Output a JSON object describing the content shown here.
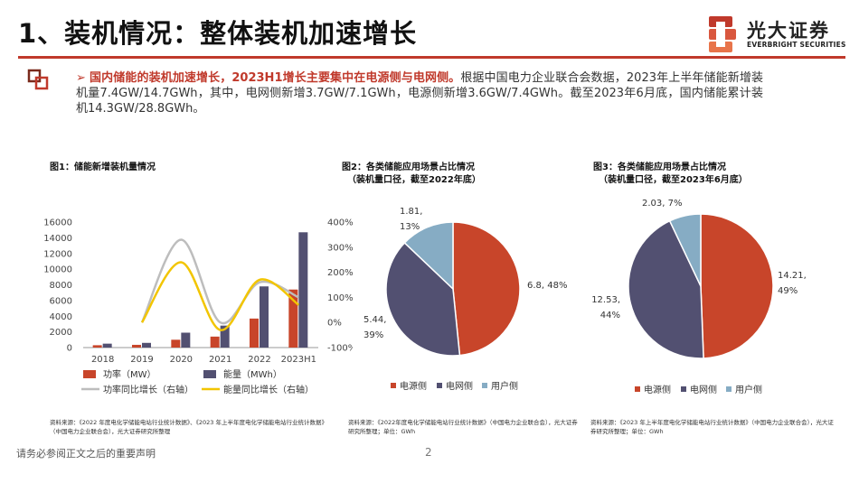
{
  "header": {
    "title": "1、装机情况：整体装机加速增长",
    "logo_cn": "光大证券",
    "logo_en": "EVERBRIGHT SECURITIES"
  },
  "summary": {
    "arrow": "➢",
    "highlight": "国内储能的装机加速增长，2023H1增长主要集中在电源侧与电网侧。",
    "body": "根据中国电力企业联合会数据，2023年上半年储能新增装机量7.4GW/14.7GWh，其中，电网侧新增3.7GW/7.1GWh，电源侧新增3.6GW/7.4GWh。截至2023年6月底，国内储能累计装机14.3GW/28.8GWh。"
  },
  "figures": {
    "fig1_title": "图1：储能新增装机量情况",
    "fig2_title_line1": "图2：各类储能应用场景占比情况",
    "fig2_title_line2": "（装机量口径，截至2022年底）",
    "fig3_title_line1": "图3：各类储能应用场景占比情况",
    "fig3_title_line2": "（装机量口径，截至2023年6月底）"
  },
  "sources": {
    "src1": "资料来源：《2022 年度电化学储能电站行业统计数据》、《2023 年上半年度电化学储能电站行业统计数据》（中国电力企业联合会），光大证券研究所整理",
    "src2": "资料来源：《2022年度电化学储能电站行业统计数据》（中国电力企业联合会），光大证券研究所整理；单位：GWh",
    "src3": "资料来源：《2023 年上半年度电化学储能电站行业统计数据》（中国电力企业联合会），光大证券研究所整理；单位：GWh"
  },
  "footer": {
    "disclaimer": "请务必参阅正文之后的重要声明",
    "page": "2"
  },
  "colors": {
    "accent": "#c0392b",
    "power": "#c8452a",
    "energy": "#525071",
    "power_growth": "#bdbdbd",
    "energy_growth": "#f2c500",
    "user": "#86acc4"
  },
  "chart_data": [
    {
      "type": "bar",
      "categories": [
        "2018",
        "2019",
        "2020",
        "2021",
        "2022",
        "2023H1"
      ],
      "series": [
        {
          "name": "功率（MW）",
          "type": "bar",
          "axis": "left",
          "values": [
            300,
            350,
            1000,
            1400,
            3700,
            7400
          ]
        },
        {
          "name": "能量（MWh）",
          "type": "bar",
          "axis": "left",
          "values": [
            500,
            600,
            1900,
            2800,
            7800,
            14700
          ]
        },
        {
          "name": "功率同比增长（右轴）",
          "type": "line",
          "axis": "right",
          "values": [
            null,
            0,
            330,
            0,
            160,
            100
          ]
        },
        {
          "name": "能量同比增长（右轴）",
          "type": "line",
          "axis": "right",
          "values": [
            null,
            0,
            240,
            -30,
            170,
            70
          ]
        }
      ],
      "y_left": {
        "min": 0,
        "max": 16000,
        "ticks": [
          "0",
          "2000",
          "4000",
          "6000",
          "8000",
          "10000",
          "12000",
          "14000",
          "16000"
        ]
      },
      "y_right": {
        "min": -100,
        "max": 400,
        "ticks": [
          "-100%",
          "0%",
          "100%",
          "200%",
          "300%",
          "400%"
        ]
      },
      "legend_position": "bottom",
      "grid": false
    },
    {
      "type": "pie",
      "slices": [
        {
          "name": "电源侧",
          "value": 6.8,
          "label_line1": "6.8, 48%",
          "label_line2": ""
        },
        {
          "name": "电网侧",
          "value": 5.44,
          "label_line1": "5.44,",
          "label_line2": "39%"
        },
        {
          "name": "用户侧",
          "value": 1.81,
          "label_line1": "1.81,",
          "label_line2": "13%"
        }
      ],
      "legend": [
        "电源侧",
        "电网侧",
        "用户侧"
      ],
      "legend_position": "bottom"
    },
    {
      "type": "pie",
      "slices": [
        {
          "name": "电源侧",
          "value": 14.21,
          "label_line1": "14.21,",
          "label_line2": "49%"
        },
        {
          "name": "电网侧",
          "value": 12.53,
          "label_line1": "12.53,",
          "label_line2": "44%"
        },
        {
          "name": "用户侧",
          "value": 2.03,
          "label_line1": "2.03, 7%",
          "label_line2": ""
        }
      ],
      "legend": [
        "电源侧",
        "电网侧",
        "用户侧"
      ],
      "legend_position": "bottom"
    }
  ]
}
